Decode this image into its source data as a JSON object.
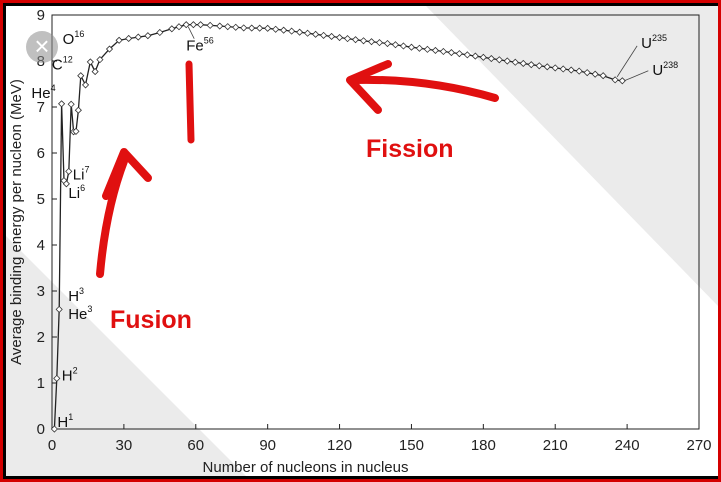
{
  "close_button": {
    "glyph": "×",
    "icon": "close-icon"
  },
  "colors": {
    "frame": "#d40000",
    "annotation": "#e01010",
    "curve": "#222222",
    "shade": "#ebebeb"
  },
  "chart_data": {
    "type": "line",
    "title": "",
    "xlabel": "Number of nucleons in nucleus",
    "ylabel": "Average binding energy per nucleon (MeV)",
    "xlim": [
      0,
      270
    ],
    "ylim": [
      0,
      9
    ],
    "x_ticks": [
      "0",
      "30",
      "60",
      "90",
      "120",
      "150",
      "180",
      "210",
      "240",
      "270"
    ],
    "y_ticks": [
      "0",
      "1",
      "2",
      "3",
      "4",
      "5",
      "6",
      "7",
      "8",
      "9"
    ],
    "grid": false,
    "series": [
      {
        "points": [
          [
            1,
            0
          ],
          [
            2,
            1.1
          ],
          [
            3,
            2.6
          ],
          [
            4,
            7.07
          ],
          [
            5,
            5.4
          ],
          [
            6,
            5.33
          ],
          [
            7,
            5.6
          ],
          [
            8,
            7.06
          ],
          [
            9,
            6.46
          ],
          [
            10,
            6.47
          ],
          [
            11,
            6.93
          ],
          [
            12,
            7.68
          ],
          [
            14,
            7.48
          ],
          [
            16,
            7.98
          ],
          [
            18,
            7.77
          ],
          [
            20,
            8.03
          ],
          [
            24,
            8.26
          ],
          [
            28,
            8.45
          ],
          [
            32,
            8.49
          ],
          [
            36,
            8.52
          ],
          [
            40,
            8.55
          ],
          [
            45,
            8.62
          ],
          [
            50,
            8.7
          ],
          [
            56,
            8.79
          ],
          [
            62,
            8.79
          ],
          [
            70,
            8.76
          ],
          [
            80,
            8.72
          ],
          [
            90,
            8.71
          ],
          [
            100,
            8.65
          ],
          [
            110,
            8.58
          ],
          [
            120,
            8.51
          ],
          [
            130,
            8.44
          ],
          [
            140,
            8.38
          ],
          [
            150,
            8.3
          ],
          [
            160,
            8.23
          ],
          [
            170,
            8.16
          ],
          [
            180,
            8.08
          ],
          [
            190,
            8.0
          ],
          [
            200,
            7.92
          ],
          [
            210,
            7.85
          ],
          [
            220,
            7.78
          ],
          [
            230,
            7.68
          ],
          [
            235,
            7.59
          ],
          [
            238,
            7.57
          ]
        ]
      }
    ],
    "isotope_labels": [
      {
        "sym": "H",
        "mass": "1",
        "x": 1,
        "y": 0
      },
      {
        "sym": "H",
        "mass": "2",
        "x": 2,
        "y": 1.1
      },
      {
        "sym": "He",
        "mass": "3",
        "x": 3,
        "y": 2.57
      },
      {
        "sym": "H",
        "mass": "3",
        "x": 3,
        "y": 2.83
      },
      {
        "sym": "He",
        "mass": "4",
        "x": 4,
        "y": 7.07
      },
      {
        "sym": "Li",
        "mass": "6",
        "x": 6,
        "y": 5.33
      },
      {
        "sym": "Li",
        "mass": "7",
        "x": 7,
        "y": 5.6
      },
      {
        "sym": "C",
        "mass": "12",
        "x": 12,
        "y": 7.68
      },
      {
        "sym": "O",
        "mass": "16",
        "x": 16,
        "y": 7.98
      },
      {
        "sym": "Fe",
        "mass": "56",
        "x": 56,
        "y": 8.79
      },
      {
        "sym": "U",
        "mass": "235",
        "x": 235,
        "y": 7.59
      },
      {
        "sym": "U",
        "mass": "238",
        "x": 238,
        "y": 7.57
      }
    ],
    "annotations": [
      {
        "text": "Fission",
        "arrow": "pointing left toward the curve peak"
      },
      {
        "text": "Fusion",
        "arrow": "pointing up toward the curve peak"
      }
    ]
  }
}
